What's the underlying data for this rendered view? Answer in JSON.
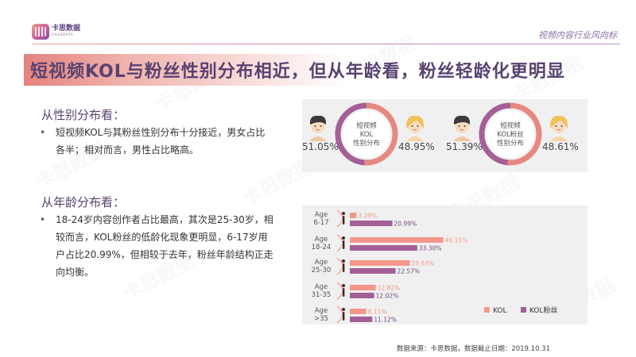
{
  "brand": {
    "name_cn": "卡思数据",
    "name_en": "CAASDATA"
  },
  "header": {
    "tag": "视频内容行业风向标"
  },
  "title": "短视频KOL与粉丝性别分布相近，但从年龄看，粉丝轻龄化更明显",
  "sections": {
    "gender": {
      "heading": "从性别分布看：",
      "bullet": [
        "短视频KOL与其粉丝性别分布十分接近，男女占比",
        "各半；相对而言，男性占比略高。"
      ]
    },
    "age": {
      "heading": "从年龄分布看：",
      "bullet": [
        "18-24岁内容创作者占比最高，其次是25-30岁，相",
        "较而言，KOL粉丝的低龄化现象更明显，6-17岁用",
        "户占比20.99%，但相较于去年，粉丝年龄结构正走",
        "向均衡。"
      ]
    }
  },
  "colors": {
    "male": "#e88882",
    "female": "#a45f97",
    "kol": "#f4978b",
    "fans": "#a45f97"
  },
  "source": "数据来源：卡思数据，数据截止日期：2019.10.31",
  "watermark": "卡思数据",
  "chart_data": [
    {
      "type": "pie",
      "title": "短视频KOL性别分布",
      "title_lines": [
        "短视频",
        "KOL",
        "性别分布"
      ],
      "categories": [
        "男",
        "女"
      ],
      "values": [
        51.05,
        48.95
      ],
      "labels": [
        "51.05%",
        "48.95%"
      ]
    },
    {
      "type": "pie",
      "title": "短视频KOL粉丝性别分布",
      "title_lines": [
        "短视频",
        "KOL粉丝",
        "性别分布"
      ],
      "categories": [
        "男",
        "女"
      ],
      "values": [
        51.39,
        48.61
      ],
      "labels": [
        "51.39%",
        "48.61%"
      ]
    },
    {
      "type": "bar",
      "orientation": "horizontal",
      "categories": [
        "Age 6-17",
        "Age 18-24",
        "Age 25-30",
        "Age 31-35",
        "Age >35"
      ],
      "category_lines": [
        [
          "Age",
          "6-17"
        ],
        [
          "Age",
          "18-24"
        ],
        [
          "Age",
          "25-30"
        ],
        [
          "Age",
          "31-35"
        ],
        [
          "Age",
          ">35"
        ]
      ],
      "series": [
        {
          "name": "KOL",
          "values": [
            3.29,
            46.15,
            29.63,
            12.82,
            8.11
          ],
          "labels": [
            "3.29%",
            "46.15%",
            "29.63%",
            "12.82%",
            "8.11%"
          ]
        },
        {
          "name": "KOL粉丝",
          "values": [
            20.99,
            33.3,
            22.57,
            12.02,
            11.12
          ],
          "labels": [
            "20.99%",
            "33.30%",
            "22.57%",
            "12.02%",
            "11.12%"
          ]
        }
      ],
      "legend_position": "bottom-right"
    }
  ]
}
